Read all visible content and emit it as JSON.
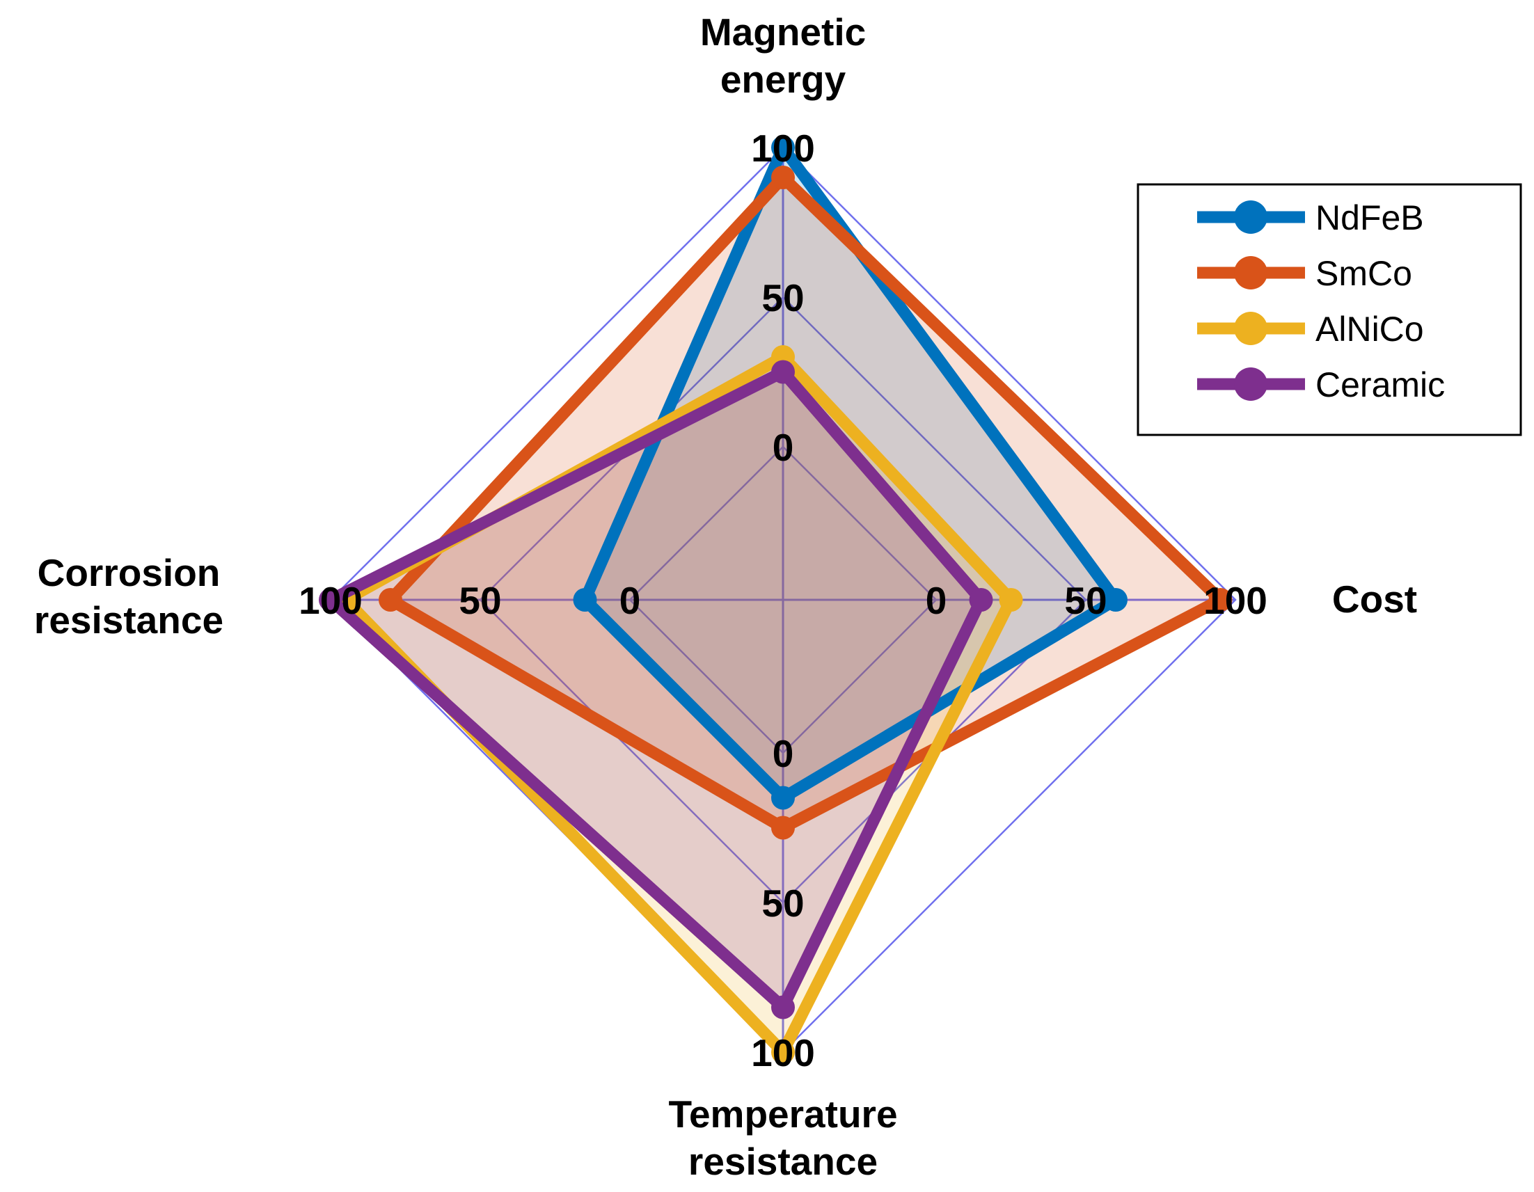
{
  "chart_data": {
    "type": "radar",
    "axes": [
      {
        "key": "top",
        "label_lines": [
          "Magnetic",
          "energy"
        ],
        "ticks": [
          "0",
          "50",
          "100"
        ]
      },
      {
        "key": "right",
        "label_lines": [
          "Cost"
        ],
        "ticks": [
          "0",
          "50",
          "100"
        ]
      },
      {
        "key": "bottom",
        "label_lines": [
          "Temperature",
          "resistance"
        ],
        "ticks": [
          "0",
          "50",
          "100"
        ]
      },
      {
        "key": "left",
        "label_lines": [
          "Corrosion",
          "resistance"
        ],
        "ticks": [
          "0",
          "50",
          "100"
        ]
      }
    ],
    "range": [
      0,
      100
    ],
    "series": [
      {
        "name": "NdFeB",
        "color": "#0072BD",
        "values": [
          100,
          60,
          15,
          15
        ]
      },
      {
        "name": "SmCo",
        "color": "#D95319",
        "values": [
          90,
          95,
          25,
          80
        ]
      },
      {
        "name": "AlNiCo",
        "color": "#EDB120",
        "values": [
          30,
          25,
          100,
          95
        ]
      },
      {
        "name": "Ceramic",
        "color": "#7E2F8E",
        "values": [
          25,
          15,
          85,
          100
        ]
      }
    ],
    "grid": true,
    "grid_color": "#7070ee",
    "legend_position": "top-right"
  }
}
